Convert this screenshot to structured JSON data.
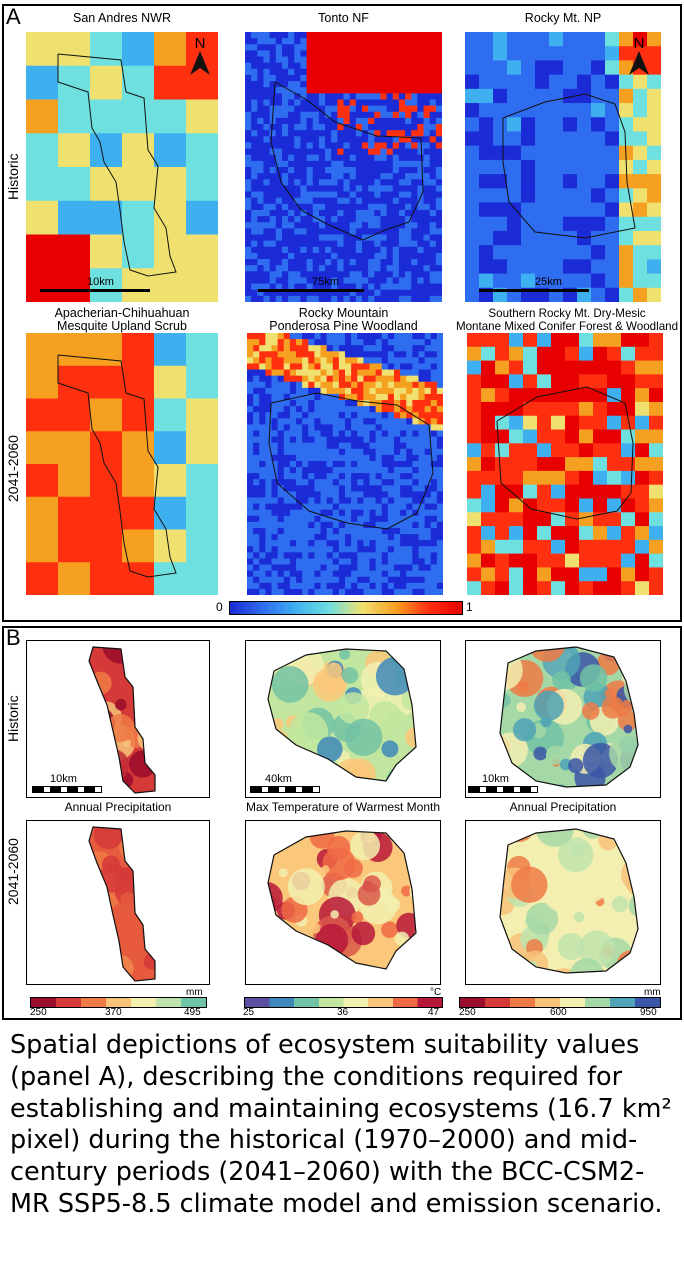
{
  "panel_a": {
    "letter": "A",
    "row_labels": [
      "Historic",
      "2041-2060"
    ],
    "col_titles": [
      "San Andres NWR",
      "Tonto NF",
      "Rocky Mt. NP"
    ],
    "ecosystems": [
      {
        "line1": "Apacherian-Chihuahuan",
        "line2": "Mesquite Upland Scrub"
      },
      {
        "line1": "Rocky Mountain",
        "line2": "Ponderosa Pine Woodland"
      },
      {
        "line1": "Southern Rocky Mt. Dry-Mesic",
        "line2": "Montane Mixed Conifer Forest & Woodland"
      }
    ],
    "scale_bars": [
      "10km",
      "75km",
      "25km"
    ],
    "north_label": "N",
    "colorbar": {
      "min": "0",
      "max": "1"
    }
  },
  "panel_b": {
    "letter": "B",
    "row_labels": [
      "Historic",
      "2041-2060"
    ],
    "variables": [
      "Annual Precipitation",
      "Max Temperature of Warmest Month",
      "Annual Precipitation"
    ],
    "scale_bars": [
      "10km",
      "40km",
      "10km"
    ],
    "colorbars": [
      {
        "unit": "mm",
        "ticks": [
          "250",
          "370",
          "495"
        ]
      },
      {
        "unit": "°C",
        "ticks": [
          "25",
          "36",
          "47"
        ]
      },
      {
        "unit": "mm",
        "ticks": [
          "250",
          "600",
          "950"
        ]
      }
    ]
  },
  "caption": "Spatial depictions of ecosystem suitability values (panel A), describing the conditions required for establishing and maintaining ecosystems (16.7 km² pixel) during the historical (1970–2000) and mid-century periods (2041–2060) with the BCC-CSM2-MR SSP5-8.5 climate model and emission scenario.",
  "colors": {
    "suitability_ramp": [
      "#1b2bd6",
      "#2f6df0",
      "#3fb0ef",
      "#6fe0e0",
      "#f0e070",
      "#f5a020",
      "#ff3010",
      "#e80000"
    ],
    "precip_ramp": [
      "#9a0d2c",
      "#d53a38",
      "#ee7a45",
      "#f7c27a",
      "#f3efb0",
      "#bfe3ad",
      "#6ec4a4"
    ],
    "temp_ramp": [
      "#5c4fa0",
      "#3f88bb",
      "#72c2a5",
      "#c2e69f",
      "#f2f0b0",
      "#fbc77a",
      "#ef6a45",
      "#b7183a"
    ],
    "precip_ramp_rmnp": [
      "#9a0d2c",
      "#d53a38",
      "#ee7a45",
      "#f7c27a",
      "#f3efb0",
      "#a5d8a7",
      "#4ea3b6",
      "#3a56a6"
    ]
  }
}
